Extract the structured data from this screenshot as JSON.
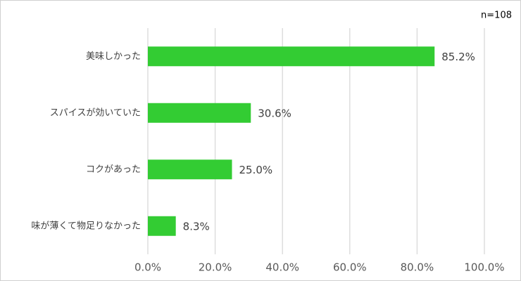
{
  "chart_data": {
    "type": "barh",
    "annotation": "n=108",
    "categories": [
      "美味しかった",
      "スパイスが効いていた",
      "コクがあった",
      "味が薄くて物足りなかった"
    ],
    "values": [
      85.2,
      30.6,
      25.0,
      8.3
    ],
    "value_labels": [
      "85.2%",
      "30.6%",
      "25.0%",
      "8.3%"
    ],
    "color": "#33cc33",
    "xlim": [
      0,
      100
    ],
    "xticks": [
      {
        "value": 0,
        "label": "0.0%"
      },
      {
        "value": 20,
        "label": "20.0%"
      },
      {
        "value": 40,
        "label": "40.0%"
      },
      {
        "value": 60,
        "label": "60.0%"
      },
      {
        "value": 80,
        "label": "80.0%"
      },
      {
        "value": 100,
        "label": "100.0%"
      }
    ],
    "grid": true
  }
}
